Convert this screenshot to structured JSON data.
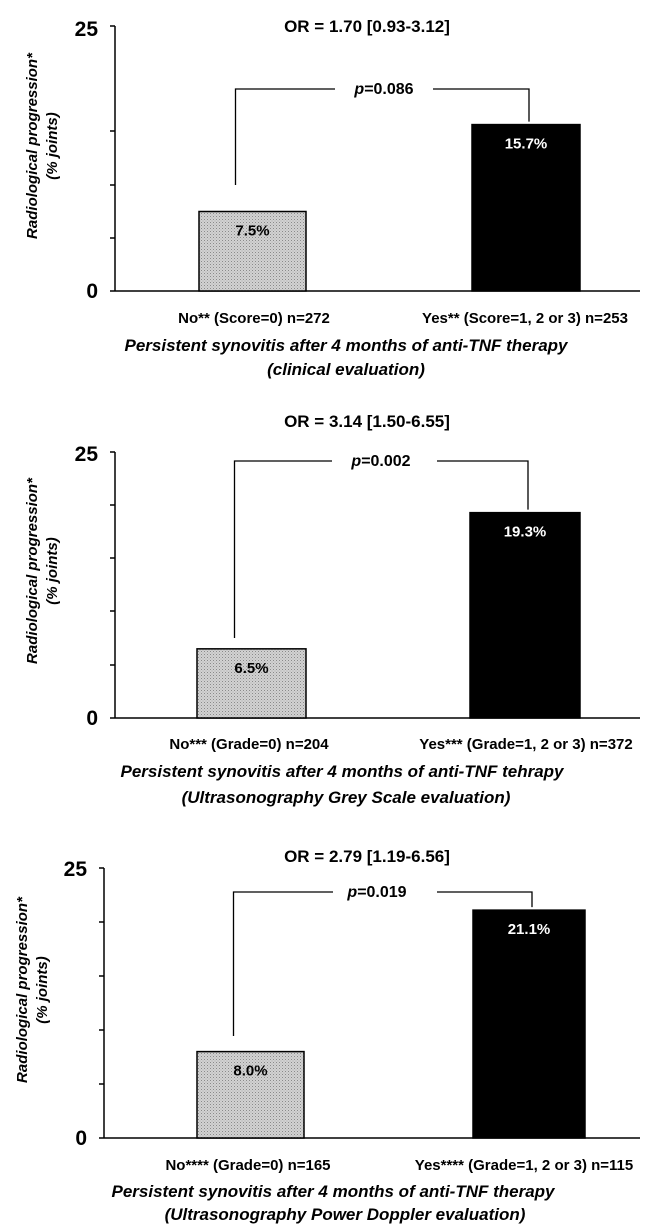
{
  "chart_data": [
    {
      "type": "bar",
      "title": "OR = 1.70 [0.93-3.12]",
      "categories": [
        "No** (Score=0) n=272",
        "Yes** (Score=1, 2 or 3) n=253"
      ],
      "values": [
        7.5,
        15.7
      ],
      "value_labels": [
        "7.5%",
        "15.7%"
      ],
      "bar_colors": [
        "#d4d4d4",
        "#000000"
      ],
      "label_colors": [
        "#000000",
        "#ffffff"
      ],
      "ylabel": [
        "Radiological progression*",
        "(% joints)"
      ],
      "xlabel": [
        "Persistent synovitis after 4 months of anti-TNF therapy",
        "(clinical evaluation)"
      ],
      "ylim": [
        0,
        25
      ],
      "yticks": [
        "0",
        "25"
      ],
      "p_value": {
        "prefix": "p",
        "rest": "=0.086"
      },
      "grid": false
    },
    {
      "type": "bar",
      "title": "OR = 3.14 [1.50-6.55]",
      "categories": [
        "No*** (Grade=0) n=204",
        "Yes*** (Grade=1, 2 or 3) n=372"
      ],
      "values": [
        6.5,
        19.3
      ],
      "value_labels": [
        "6.5%",
        "19.3%"
      ],
      "bar_colors": [
        "#d4d4d4",
        "#000000"
      ],
      "label_colors": [
        "#000000",
        "#ffffff"
      ],
      "ylabel": [
        "Radiological progression*",
        "(% joints)"
      ],
      "xlabel": [
        "Persistent synovitis after 4 months of anti-TNF tehrapy",
        "(Ultrasonography Grey Scale evaluation)"
      ],
      "ylim": [
        0,
        25
      ],
      "yticks": [
        "0",
        "25"
      ],
      "p_value": {
        "prefix": "p",
        "rest": "=0.002"
      },
      "grid": false
    },
    {
      "type": "bar",
      "title": "OR = 2.79 [1.19-6.56]",
      "categories": [
        "No**** (Grade=0) n=165",
        "Yes**** (Grade=1, 2 or 3) n=115"
      ],
      "values": [
        8.0,
        21.1
      ],
      "value_labels": [
        "8.0%",
        "21.1%"
      ],
      "bar_colors": [
        "#d4d4d4",
        "#000000"
      ],
      "label_colors": [
        "#000000",
        "#ffffff"
      ],
      "ylabel": [
        "Radiological progression*",
        "(% joints)"
      ],
      "xlabel": [
        "Persistent synovitis after 4 months of anti-TNF therapy",
        "(Ultrasonography Power Doppler evaluation)"
      ],
      "ylim": [
        0,
        25
      ],
      "yticks": [
        "0",
        "25"
      ],
      "p_value": {
        "prefix": "p",
        "rest": "=0.019"
      },
      "grid": false
    }
  ]
}
